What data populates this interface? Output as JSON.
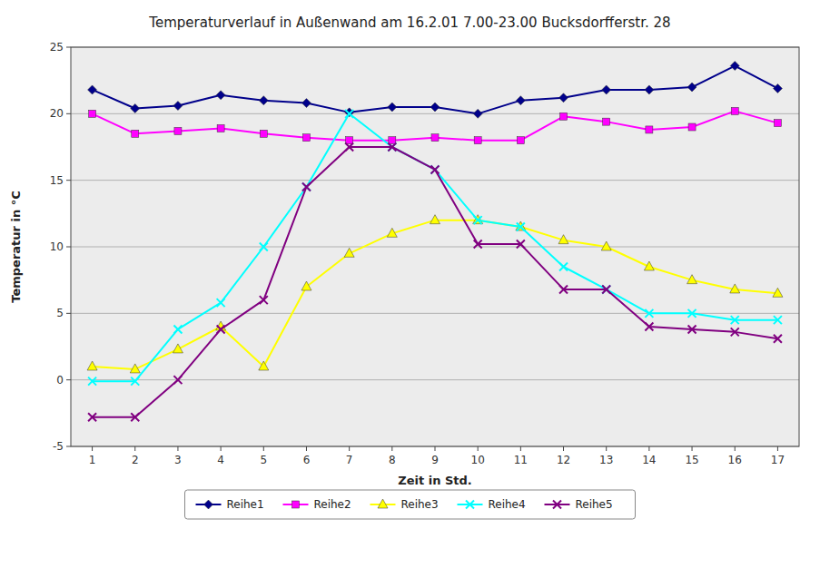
{
  "chart_data": {
    "type": "line",
    "title": "Temperaturverlauf in Außenwand am 16.2.01 7.00-23.00 Bucksdorfferstr. 28",
    "xlabel": "Zeit in Std.",
    "ylabel": "Temperatur in °C",
    "x": [
      1,
      2,
      3,
      4,
      5,
      6,
      7,
      8,
      9,
      10,
      11,
      12,
      13,
      14,
      15,
      16,
      17
    ],
    "series": [
      {
        "name": "Reihe1",
        "color": "#00008B",
        "marker": "diamond",
        "values": [
          21.8,
          20.4,
          20.6,
          21.4,
          21.0,
          20.8,
          20.1,
          20.5,
          20.5,
          20.0,
          21.0,
          21.2,
          21.8,
          21.8,
          22.0,
          23.6,
          21.9
        ]
      },
      {
        "name": "Reihe2",
        "color": "#FF00FF",
        "marker": "square",
        "values": [
          20.0,
          18.5,
          18.7,
          18.9,
          18.5,
          18.2,
          18.0,
          18.0,
          18.2,
          18.0,
          18.0,
          19.8,
          19.4,
          18.8,
          19.0,
          20.2,
          19.3
        ]
      },
      {
        "name": "Reihe3",
        "color": "#FFFF00",
        "marker": "triangle",
        "values": [
          1.0,
          0.8,
          2.3,
          4.0,
          1.0,
          7.0,
          9.5,
          11.0,
          12.0,
          12.0,
          11.5,
          10.5,
          10.0,
          8.5,
          7.5,
          6.8,
          6.5
        ]
      },
      {
        "name": "Reihe4",
        "color": "#00FFFF",
        "marker": "x",
        "values": [
          -0.1,
          -0.1,
          3.8,
          5.8,
          10.0,
          14.5,
          20.0,
          17.5,
          15.8,
          12.0,
          11.5,
          8.5,
          6.8,
          5.0,
          5.0,
          4.5,
          4.5
        ]
      },
      {
        "name": "Reihe5",
        "color": "#800080",
        "marker": "x",
        "values": [
          -2.8,
          -2.8,
          0.0,
          3.8,
          6.0,
          14.5,
          17.5,
          17.5,
          15.8,
          10.2,
          10.2,
          6.8,
          6.8,
          4.0,
          3.8,
          3.6,
          3.1
        ]
      }
    ],
    "xlim": [
      0.5,
      17.5
    ],
    "ylim": [
      -5,
      25
    ],
    "xticks": [
      1,
      2,
      3,
      4,
      5,
      6,
      7,
      8,
      9,
      10,
      11,
      12,
      13,
      14,
      15,
      16,
      17
    ],
    "yticks": [
      -5,
      0,
      5,
      10,
      15,
      20,
      25
    ],
    "grid": "y",
    "legend": "bottom"
  }
}
